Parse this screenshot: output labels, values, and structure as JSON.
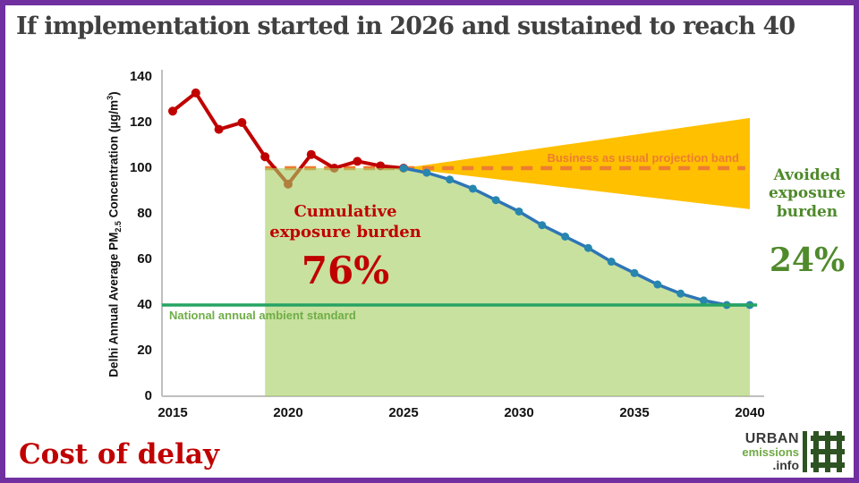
{
  "frame": {
    "border_color": "#7030A0",
    "background": "#ffffff"
  },
  "title": "If implementation started in 2026 and sustained to reach 40",
  "annotations": {
    "bau_band_label": "Business as usual projection band",
    "cumulative_label_line1": "Cumulative",
    "cumulative_label_line2": "exposure burden",
    "cumulative_value": "76%",
    "avoided_line1": "Avoided",
    "avoided_line2": "exposure",
    "avoided_line3": "burden",
    "avoided_value": "24%",
    "standard_label": "National annual ambient standard"
  },
  "ylabel_parts": {
    "part1": "Delhi Annual Average PM",
    "sub": "2.5",
    "part2": " Concentration (µg/m",
    "sup": "3",
    "part3": ")"
  },
  "footer": {
    "caption": "Cost of delay",
    "logo": {
      "line1": "URBAN",
      "line2": "emissions",
      "line3": ".info",
      "icon": "hash-grid-icon",
      "icon_color": "#2E5323"
    }
  },
  "colors": {
    "observed_line": "#C00000",
    "pathway_line": "#2E75B6",
    "pathway_points": "#2786AE",
    "bau_band": "#FFC000",
    "bau_dashed": "#ED7D31",
    "exposure_fill": "#A6CE64",
    "standard_line": "#27A463",
    "standard_label": "#70AD47",
    "avoided_text": "#4F8A2B",
    "burden_text": "#C00000",
    "axis": "#BFBFBF",
    "title_text": "#404040"
  },
  "chart_data": {
    "type": "line",
    "title": "",
    "xlabel": "",
    "ylabel": "Delhi Annual Average PM2.5 Concentration (µg/m³)",
    "xlim": [
      2015,
      2040
    ],
    "ylim": [
      0,
      140
    ],
    "x_ticks": [
      2015,
      2020,
      2025,
      2030,
      2035,
      2040
    ],
    "y_ticks": [
      0,
      20,
      40,
      60,
      80,
      100,
      120,
      140
    ],
    "grid": false,
    "legend": "none",
    "series": [
      {
        "name": "observed-pm25",
        "color": "#C00000",
        "x": [
          2015,
          2016,
          2017,
          2018,
          2019,
          2020,
          2021,
          2022,
          2023,
          2024,
          2025
        ],
        "values": [
          125,
          133,
          117,
          120,
          105,
          93,
          106,
          100,
          103,
          101,
          100
        ]
      },
      {
        "name": "implementation-pathway",
        "color": "#2E75B6",
        "point_color": "#2786AE",
        "x": [
          2025,
          2026,
          2027,
          2028,
          2029,
          2030,
          2031,
          2032,
          2033,
          2034,
          2035,
          2036,
          2037,
          2038,
          2039,
          2040
        ],
        "values": [
          100,
          98,
          95,
          91,
          86,
          81,
          75,
          70,
          65,
          59,
          54,
          49,
          45,
          42,
          40,
          40
        ]
      }
    ],
    "bau_band": {
      "apex_x": 2025,
      "apex_y": 100,
      "end_x": 2040,
      "end_top": 122,
      "end_bottom": 82,
      "color": "#FFC000"
    },
    "bau_dashed_line": {
      "y": 100,
      "x_start": 2019,
      "x_end": 2039.8,
      "color": "#ED7D31",
      "style": "dashed"
    },
    "standard_line": {
      "y": 40,
      "x_start": 2015,
      "x_end": 2040.2,
      "color": "#27A463",
      "label": "National annual ambient standard"
    },
    "exposure_fill": {
      "x_start": 2019,
      "x_end": 2040,
      "top_value": 100,
      "follows_series": "implementation-pathway",
      "color": "#A6CE64",
      "opacity": 0.62,
      "share_label": "76%"
    },
    "avoided_share_label": "24%"
  }
}
